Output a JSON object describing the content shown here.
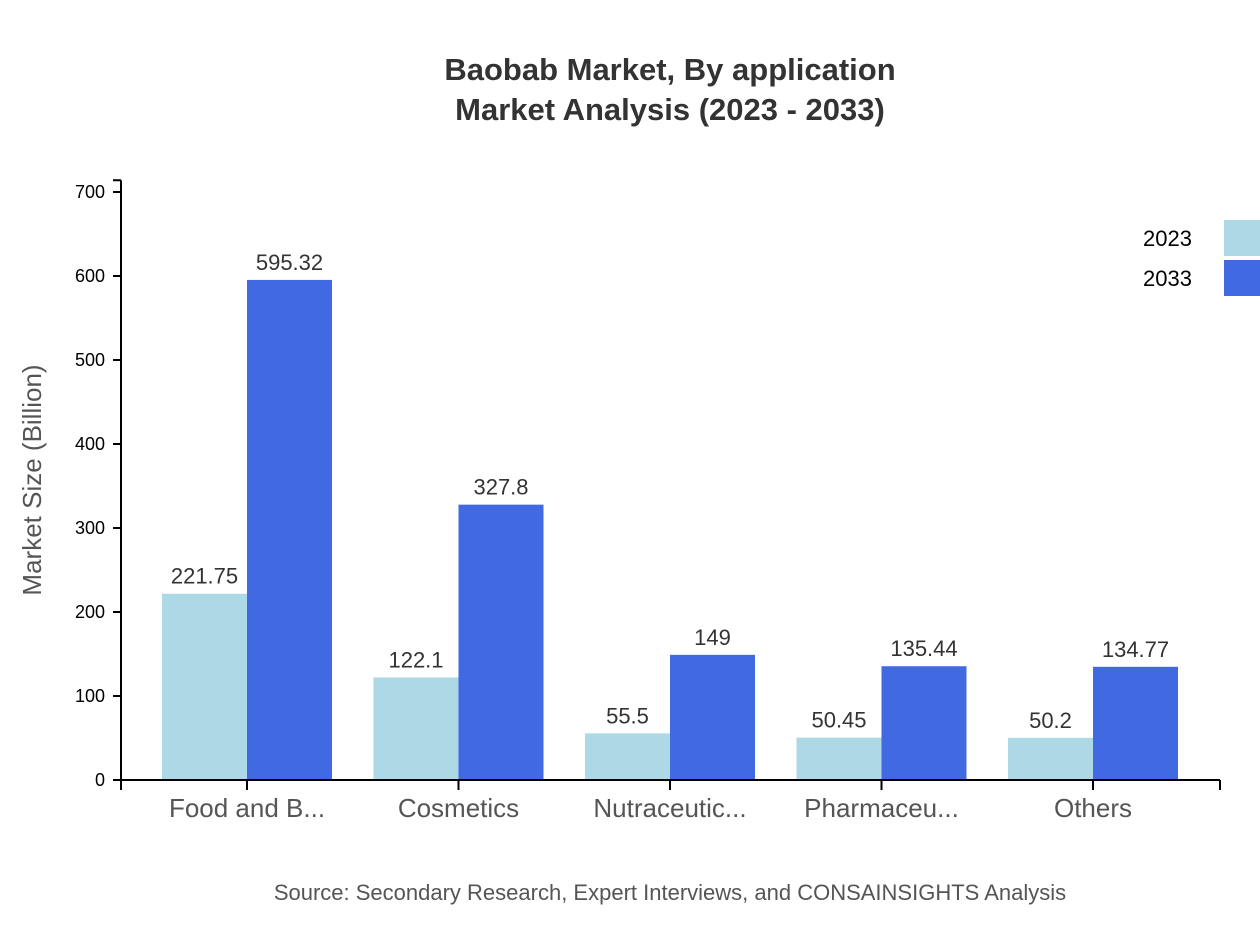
{
  "chart_data": {
    "type": "bar",
    "title": "Baobab Market, By application",
    "subtitle": "Market Analysis (2023 - 2033)",
    "xlabel": "",
    "ylabel": "Market Size (Billion)",
    "ylim": [
      0,
      714
    ],
    "yticks": [
      0,
      100,
      200,
      300,
      400,
      500,
      600,
      700
    ],
    "grid": false,
    "legend_position": "top-right",
    "categories": [
      "Food and B...",
      "Cosmetics",
      "Nutraceutic...",
      "Pharmaceu...",
      "Others"
    ],
    "series": [
      {
        "name": "2023",
        "color": "#add8e6",
        "values": [
          221.75,
          122.1,
          55.5,
          50.45,
          50.2
        ],
        "labels": [
          "221.75",
          "122.1",
          "55.5",
          "50.45",
          "50.2"
        ]
      },
      {
        "name": "2033",
        "color": "#4169e1",
        "values": [
          595.32,
          327.8,
          149,
          135.44,
          134.77
        ],
        "labels": [
          "595.32",
          "327.8",
          "149",
          "135.44",
          "134.77"
        ]
      }
    ],
    "source": "Source: Secondary Research, Expert Interviews, and CONSAINSIGHTS Analysis"
  },
  "colors": {
    "series_2023": "#add8e6",
    "series_2033": "#4169e1",
    "title": "#333333",
    "axis": "#000000",
    "muted_text": "#555555"
  }
}
